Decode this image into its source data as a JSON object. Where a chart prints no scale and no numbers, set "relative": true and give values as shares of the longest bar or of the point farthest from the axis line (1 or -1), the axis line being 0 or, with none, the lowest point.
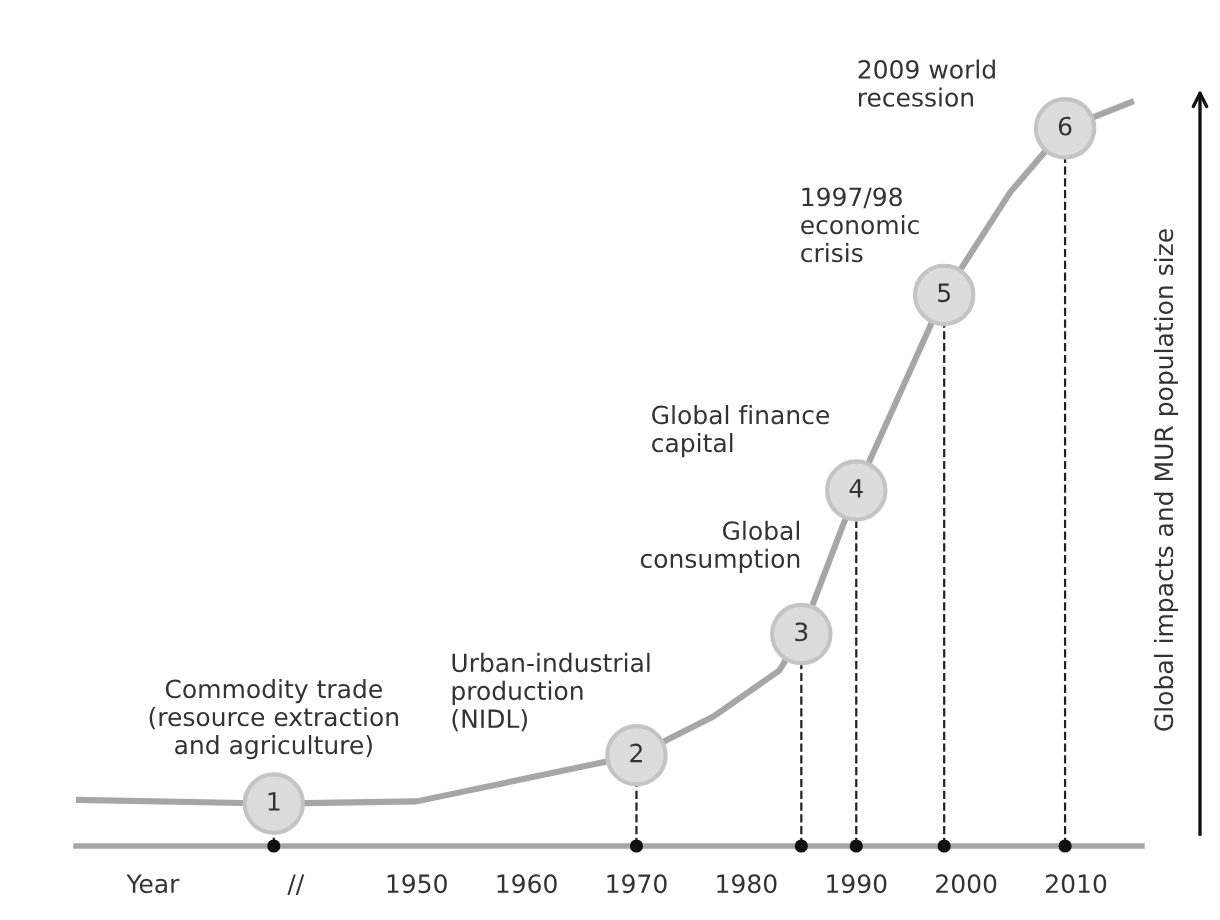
{
  "chart_data": {
    "type": "line",
    "relative": true,
    "ylabel": "Global impacts and MUR population size",
    "xlim": [
      1919,
      2016
    ],
    "xticks": [
      {
        "value": 1926,
        "label": "Year"
      },
      {
        "value": 1939,
        "label": "//"
      },
      1950,
      1960,
      1970,
      1980,
      1990,
      2000,
      2010
    ],
    "grid": false,
    "series": [
      {
        "color": "#a6a6a6",
        "line_style": "solid",
        "marker": "none",
        "x": [
          1919,
          1937,
          1950,
          1970,
          1977,
          1983,
          1985,
          1990,
          1998,
          2004,
          2009,
          2015
        ],
        "values": [
          0.062,
          0.057,
          0.06,
          0.122,
          0.174,
          0.236,
          0.285,
          0.478,
          0.741,
          0.879,
          0.965,
          1.0
        ]
      },
      {
        "type": "lollipop",
        "color": "#dcdcdc",
        "line_style": "dashed",
        "marker": "circle",
        "x": [
          1937,
          1970,
          1985,
          1990,
          1998,
          2009
        ],
        "values": [
          0.057,
          0.122,
          0.285,
          0.478,
          0.741,
          0.965
        ]
      },
      {
        "type": "scatter",
        "color": "#111111",
        "x": [
          1937,
          1970,
          1985,
          1990,
          1998,
          2009
        ],
        "values": [
          0,
          0,
          0,
          0,
          0,
          0
        ]
      }
    ],
    "annotations": [
      {
        "text": "Commodity trade\n(resource extraction\nand agriculture)",
        "x": 1937,
        "y": 0.057
      },
      {
        "text": "Urban-industrial\nproduction\n(NIDL)",
        "x": 1970,
        "y": 0.122
      },
      {
        "text": "Global\nconsumption",
        "x": 1985,
        "y": 0.285
      },
      {
        "text": "Global finance\ncapital",
        "x": 1990,
        "y": 0.478
      },
      {
        "text": "1997/98\neconomic\ncrisis",
        "x": 1998,
        "y": 0.741
      },
      {
        "text": "2009 world\nrecession",
        "x": 2009,
        "y": 0.965
      },
      {
        "text": "1",
        "x": 1937,
        "y": 0.057
      },
      {
        "text": "2",
        "x": 1970,
        "y": 0.122
      },
      {
        "text": "3",
        "x": 1985,
        "y": 0.285
      },
      {
        "text": "4",
        "x": 1990,
        "y": 0.478
      },
      {
        "text": "5",
        "x": 1998,
        "y": 0.741
      },
      {
        "text": "6",
        "x": 2009,
        "y": 0.965
      }
    ]
  }
}
